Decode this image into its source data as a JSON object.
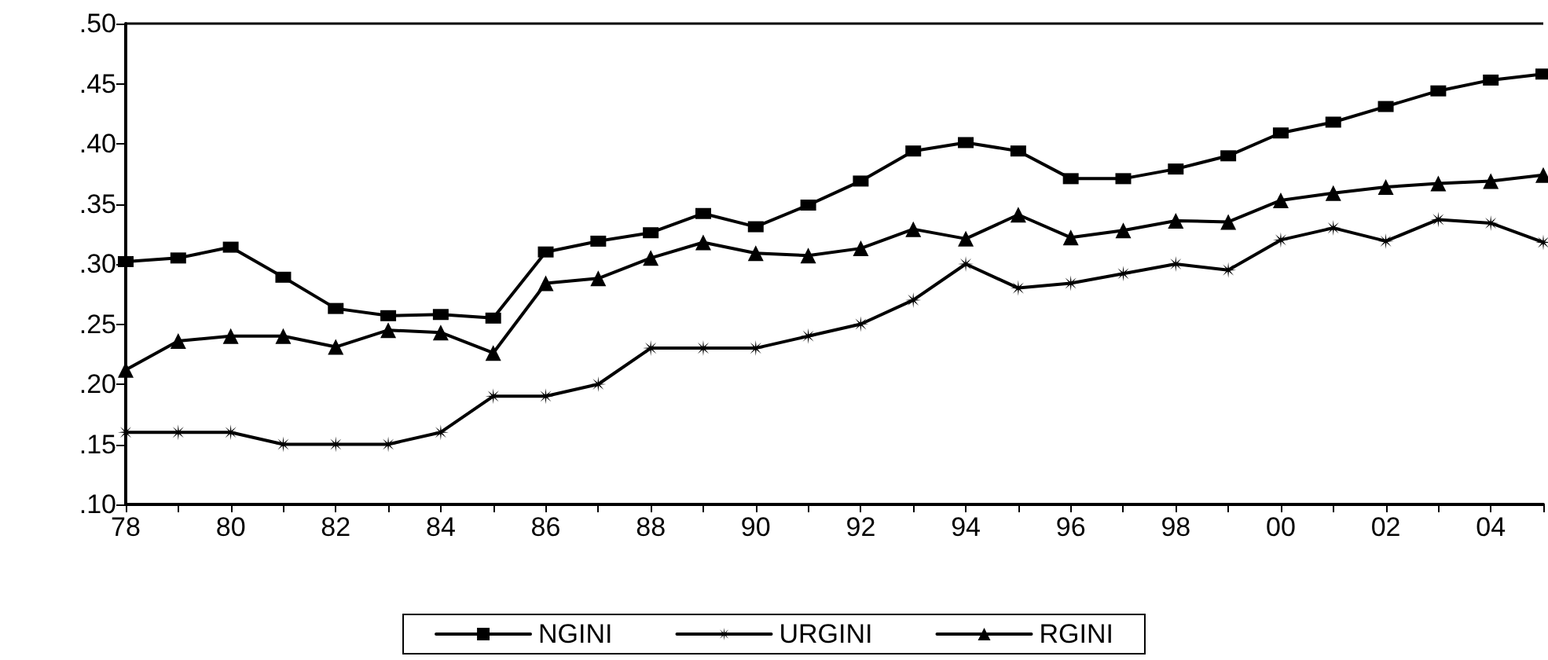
{
  "chart_data": {
    "type": "line",
    "categories": [
      "78",
      null,
      "80",
      null,
      "82",
      null,
      "84",
      null,
      "86",
      null,
      "88",
      null,
      "90",
      null,
      "92",
      null,
      "94",
      null,
      "96",
      null,
      "98",
      null,
      "00",
      null,
      "02",
      null,
      "04",
      null
    ],
    "series": [
      {
        "name": "NGINI",
        "color": "#000000",
        "marker": "square",
        "values": [
          0.302,
          0.305,
          0.314,
          0.289,
          0.263,
          0.257,
          0.258,
          0.255,
          0.31,
          0.319,
          0.326,
          0.342,
          0.331,
          0.349,
          0.369,
          0.394,
          0.401,
          0.394,
          0.371,
          0.371,
          0.379,
          0.39,
          0.409,
          0.418,
          0.431,
          0.444,
          0.453,
          0.458
        ]
      },
      {
        "name": "URGINI",
        "color": "#000000",
        "marker": "star",
        "values": [
          0.16,
          0.16,
          0.16,
          0.15,
          0.15,
          0.15,
          0.16,
          0.19,
          0.19,
          0.2,
          0.23,
          0.23,
          0.23,
          0.24,
          0.25,
          0.27,
          0.3,
          0.28,
          0.284,
          0.292,
          0.3,
          0.295,
          0.32,
          0.33,
          0.319,
          0.337,
          0.334,
          0.318
        ]
      },
      {
        "name": "RGINI",
        "color": "#000000",
        "marker": "triangle",
        "values": [
          0.212,
          0.236,
          0.24,
          0.24,
          0.231,
          0.245,
          0.243,
          0.226,
          0.284,
          0.288,
          0.305,
          0.318,
          0.309,
          0.307,
          0.313,
          0.329,
          0.321,
          0.341,
          0.322,
          0.328,
          0.336,
          0.335,
          0.353,
          0.359,
          0.364,
          0.367,
          0.369,
          0.374
        ]
      }
    ],
    "ylim": [
      0.1,
      0.5
    ],
    "yticks": [
      {
        "value": 0.1,
        "label": ".10"
      },
      {
        "value": 0.15,
        "label": ".15"
      },
      {
        "value": 0.2,
        "label": ".20"
      },
      {
        "value": 0.25,
        "label": ".25"
      },
      {
        "value": 0.3,
        "label": ".30"
      },
      {
        "value": 0.35,
        "label": ".35"
      },
      {
        "value": 0.4,
        "label": ".40"
      },
      {
        "value": 0.45,
        "label": ".45"
      },
      {
        "value": 0.5,
        "label": ".50"
      }
    ],
    "grid": false,
    "legend": "bottom",
    "line_style": "solid"
  }
}
